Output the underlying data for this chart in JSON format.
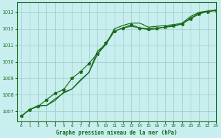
{
  "title": "Graphe pression niveau de la mer (hPa)",
  "background_color": "#c8eef0",
  "grid_color": "#99ccbb",
  "line_color": "#1a6b1a",
  "xlim": [
    -0.5,
    23
  ],
  "ylim": [
    1006.4,
    1013.6
  ],
  "yticks": [
    1007,
    1008,
    1009,
    1010,
    1011,
    1012,
    1013
  ],
  "xticks": [
    0,
    1,
    2,
    3,
    4,
    5,
    6,
    7,
    8,
    9,
    10,
    11,
    12,
    13,
    14,
    15,
    16,
    17,
    18,
    19,
    20,
    21,
    22,
    23
  ],
  "hours": [
    0,
    1,
    2,
    3,
    4,
    5,
    6,
    7,
    8,
    9,
    10,
    11,
    12,
    13,
    14,
    15,
    16,
    17,
    18,
    19,
    20,
    21,
    22,
    23
  ],
  "line_measured": [
    1006.7,
    1007.1,
    1007.3,
    1007.7,
    1008.1,
    1008.3,
    1009.0,
    1009.4,
    1009.9,
    1010.5,
    1011.15,
    1011.85,
    1012.05,
    1012.25,
    1012.05,
    1012.0,
    1012.05,
    1012.1,
    1012.2,
    1012.3,
    1012.6,
    1012.9,
    1013.05,
    1013.1
  ],
  "line_upper": [
    1006.7,
    1007.1,
    1007.35,
    1007.35,
    1007.65,
    1008.15,
    1008.35,
    1008.9,
    1009.35,
    1010.65,
    1011.05,
    1012.0,
    1012.2,
    1012.35,
    1012.35,
    1012.1,
    1012.15,
    1012.2,
    1012.25,
    1012.35,
    1012.75,
    1013.0,
    1013.08,
    1013.15
  ],
  "line_lower": [
    1006.7,
    1007.1,
    1007.3,
    1007.35,
    1007.75,
    1008.1,
    1008.35,
    1008.85,
    1009.35,
    1010.45,
    1011.05,
    1011.85,
    1012.05,
    1012.15,
    1012.05,
    1011.95,
    1012.0,
    1012.1,
    1012.15,
    1012.3,
    1012.65,
    1012.95,
    1013.05,
    1013.12
  ]
}
